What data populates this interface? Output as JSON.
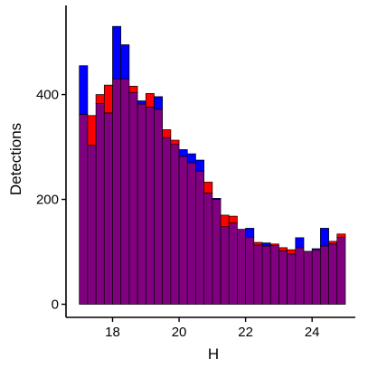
{
  "chart_data": {
    "type": "bar",
    "xlabel": "H",
    "ylabel": "Detections",
    "xlim": [
      16.6,
      25.3
    ],
    "ylim": [
      -25,
      570
    ],
    "x_ticks": [
      18,
      20,
      22,
      24
    ],
    "y_ticks": [
      0,
      200,
      400
    ],
    "bin_width": 0.25,
    "bin_starts": [
      17.0,
      17.25,
      17.5,
      17.75,
      18.0,
      18.25,
      18.5,
      18.75,
      19.0,
      19.25,
      19.5,
      19.75,
      20.0,
      20.25,
      20.5,
      20.75,
      21.0,
      21.25,
      21.5,
      21.75,
      22.0,
      22.25,
      22.5,
      22.75,
      23.0,
      23.25,
      23.5,
      23.75,
      24.0,
      24.25,
      24.5,
      24.75
    ],
    "grid": false,
    "legend": "none",
    "series": [
      {
        "color": "#ff0000",
        "values": [
          362,
          360,
          400,
          418,
          430,
          430,
          416,
          382,
          402,
          372,
          333,
          313,
          282,
          270,
          254,
          233,
          200,
          170,
          168,
          143,
          128,
          118,
          111,
          115,
          108,
          104,
          108,
          101,
          104,
          111,
          120,
          134
        ]
      },
      {
        "color": "#0000ff",
        "values": [
          455,
          303,
          383,
          365,
          530,
          495,
          404,
          388,
          376,
          396,
          318,
          305,
          295,
          287,
          275,
          212,
          202,
          148,
          155,
          143,
          145,
          113,
          117,
          112,
          102,
          96,
          127,
          101,
          106,
          145,
          115,
          128
        ]
      }
    ],
    "overlap_color": "#800080"
  }
}
